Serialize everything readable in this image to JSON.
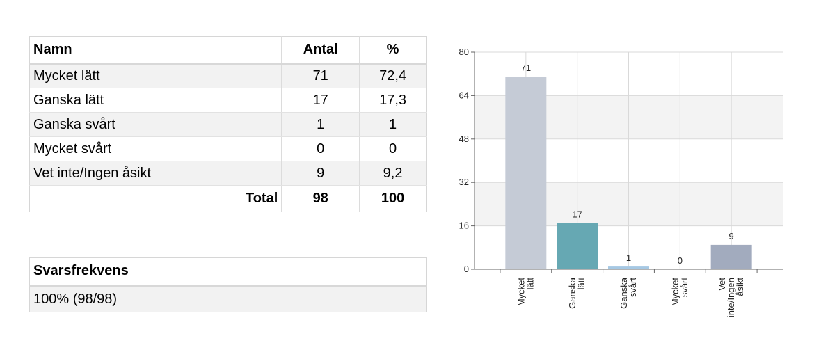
{
  "table": {
    "headers": [
      "Namn",
      "Antal",
      "%"
    ],
    "rows": [
      {
        "name": "Mycket lätt",
        "count": "71",
        "pct": "72,4"
      },
      {
        "name": "Ganska lätt",
        "count": "17",
        "pct": "17,3"
      },
      {
        "name": "Ganska svårt",
        "count": "1",
        "pct": "1"
      },
      {
        "name": "Mycket svårt",
        "count": "0",
        "pct": "0"
      },
      {
        "name": "Vet inte/Ingen åsikt",
        "count": "9",
        "pct": "9,2"
      }
    ],
    "total": {
      "label": "Total",
      "count": "98",
      "pct": "100"
    }
  },
  "response": {
    "header": "Svarsfrekvens",
    "value": "100% (98/98)"
  },
  "chart_data": {
    "type": "bar",
    "categories": [
      [
        "Mycket",
        "lätt"
      ],
      [
        "Ganska",
        "lätt"
      ],
      [
        "Ganska",
        "svårt"
      ],
      [
        "Mycket",
        "svårt"
      ],
      [
        "Vet",
        "inte/Ingen",
        "åsikt"
      ]
    ],
    "values": [
      71,
      17,
      1,
      0,
      9
    ],
    "colors": [
      "#c5cbd6",
      "#66a8b3",
      "#a6c8e3",
      "#e6e6e6",
      "#a2abbe"
    ],
    "ylim": [
      0,
      80
    ],
    "yticks": [
      0,
      16,
      32,
      48,
      64,
      80
    ],
    "grid": true,
    "bands": true
  }
}
